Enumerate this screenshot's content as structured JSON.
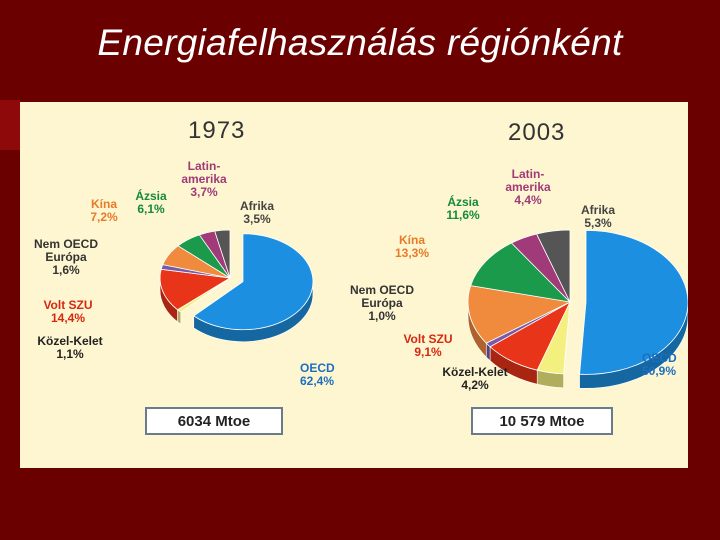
{
  "slide": {
    "title": "Energiafelhasználás régiónként"
  },
  "chart_data": [
    {
      "type": "pie",
      "title": "1973",
      "total": "6034 Mtoe",
      "slices": [
        {
          "name": "OECD",
          "label": "OECD",
          "value": 62.4,
          "value_text": "62,4%",
          "color": "#1c8fe0"
        },
        {
          "name": "Közel-Kelet",
          "label": "Közel-Kelet",
          "value": 1.1,
          "value_text": "1,1%",
          "color": "#f4f080"
        },
        {
          "name": "Volt SZU",
          "label": "Volt SZU",
          "value": 14.4,
          "value_text": "14,4%",
          "color": "#e83418"
        },
        {
          "name": "Nem OECD Európa",
          "label": "Nem OECD Európa",
          "value": 1.6,
          "value_text": "1,6%",
          "color": "#7a5aa8"
        },
        {
          "name": "Kína",
          "label": "Kína",
          "value": 7.2,
          "value_text": "7,2%",
          "color": "#f08a3c"
        },
        {
          "name": "Ázsia",
          "label": "Ázsia",
          "value": 6.1,
          "value_text": "6,1%",
          "color": "#1a9a4a"
        },
        {
          "name": "Latin-amerika",
          "label": "Latin-amerika",
          "value": 3.7,
          "value_text": "3,7%",
          "color": "#a03a78"
        },
        {
          "name": "Afrika",
          "label": "Afrika",
          "value": 3.5,
          "value_text": "3,5%",
          "color": "#555555"
        }
      ]
    },
    {
      "type": "pie",
      "title": "2003",
      "total": "10 579 Mtoe",
      "slices": [
        {
          "name": "OECD",
          "label": "OECD",
          "value": 50.9,
          "value_text": "50,9%",
          "color": "#1c8fe0"
        },
        {
          "name": "Közel-Kelet",
          "label": "Közel-Kelet",
          "value": 4.2,
          "value_text": "4,2%",
          "color": "#f4f080"
        },
        {
          "name": "Volt SZU",
          "label": "Volt SZU",
          "value": 9.1,
          "value_text": "9,1%",
          "color": "#e83418"
        },
        {
          "name": "Nem OECD Európa",
          "label": "Nem OECD Európa",
          "value": 1.0,
          "value_text": "1,0%",
          "color": "#7a5aa8"
        },
        {
          "name": "Kína",
          "label": "Kína",
          "value": 13.3,
          "value_text": "13,3%",
          "color": "#f08a3c"
        },
        {
          "name": "Ázsia",
          "label": "Ázsia",
          "value": 11.6,
          "value_text": "11,6%",
          "color": "#1a9a4a"
        },
        {
          "name": "Latin-amerika",
          "label": "Latin-amerika",
          "value": 4.4,
          "value_text": "4,4%",
          "color": "#a03a78"
        },
        {
          "name": "Afrika",
          "label": "Afrika",
          "value": 5.3,
          "value_text": "5,3%",
          "color": "#555555"
        }
      ]
    }
  ]
}
